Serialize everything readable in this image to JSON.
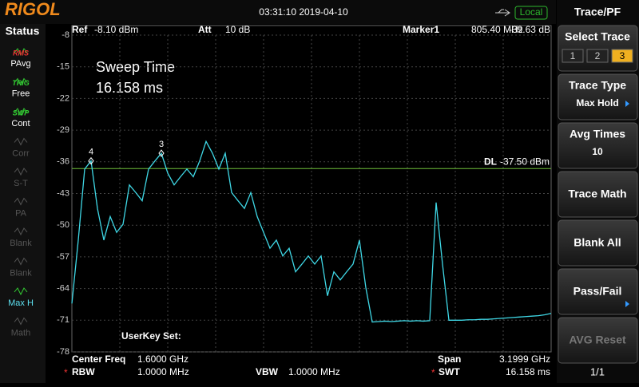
{
  "header": {
    "brand": "RIGOL",
    "datetime": "03:31:10 2019-04-10",
    "mode": "Local"
  },
  "status": {
    "title": "Status",
    "items": [
      {
        "tag": "RMS",
        "label": "PAvg"
      },
      {
        "tag": "TRIG",
        "label": "Free"
      },
      {
        "tag": "SWP",
        "label": "Cont"
      },
      {
        "label": "Corr"
      },
      {
        "label": "S-T"
      },
      {
        "label": "PA"
      },
      {
        "label": "Blank"
      },
      {
        "label": "Blank"
      },
      {
        "label": "Max H"
      },
      {
        "label": "Math"
      }
    ]
  },
  "menu": {
    "title": "Trace/PF",
    "items": [
      {
        "label": "Select Trace",
        "options": [
          "1",
          "2",
          "3"
        ]
      },
      {
        "label": "Trace Type",
        "value": "Max Hold"
      },
      {
        "label": "Avg Times",
        "value": "10"
      },
      {
        "label": "Trace Math"
      },
      {
        "label": "Blank All"
      },
      {
        "label": "Pass/Fail"
      },
      {
        "label": "AVG Reset"
      }
    ],
    "page": "1/1"
  },
  "readouts": {
    "ref": {
      "label": "Ref",
      "value": "-8.10 dBm"
    },
    "att": {
      "label": "Att",
      "value": "10 dB"
    },
    "marker": {
      "label": "Marker1",
      "freq": "805.40 MHz",
      "level": "-39.63 dB"
    },
    "overlay": {
      "label": "Sweep Time",
      "value": "16.158 ms"
    },
    "userkey": "UserKey Set:",
    "center": {
      "label": "Center Freq",
      "value": "1.6000 GHz"
    },
    "span": {
      "label": "Span",
      "value": "3.1999 GHz"
    },
    "rbw": {
      "label": "RBW",
      "value": "1.0000 MHz"
    },
    "vbw": {
      "label": "VBW",
      "value": "1.0000 MHz"
    },
    "swt": {
      "label": "SWT",
      "value": "16.158 ms"
    }
  },
  "chart_data": {
    "type": "line",
    "ylim": [
      -78,
      -8
    ],
    "yticks": [
      -8,
      -15,
      -22,
      -29,
      -36,
      -43,
      -50,
      -57,
      -64,
      -71,
      -78
    ],
    "grid": true,
    "color": "#3fd8e6",
    "values": [
      -67.3,
      -53.3,
      -37.6,
      -35.8,
      -46.3,
      -53.3,
      -48.1,
      -51.6,
      -49.8,
      -41.1,
      -42.8,
      -44.6,
      -37.6,
      -35.8,
      -34.1,
      -38.5,
      -41.1,
      -39.3,
      -37.6,
      -39.3,
      -35.8,
      -31.5,
      -34.1,
      -37.6,
      -34.1,
      -42.8,
      -44.6,
      -46.3,
      -42.8,
      -48.1,
      -51.6,
      -55.1,
      -53.3,
      -56.8,
      -55.1,
      -60.3,
      -58.6,
      -56.8,
      -58.6,
      -56.8,
      -65.6,
      -60.3,
      -62.1,
      -60.3,
      -58.6,
      -53.3,
      -63.8,
      -71.4,
      -71.3,
      -71.2,
      -71.3,
      -71.2,
      -71.1,
      -71.2,
      -71.1,
      -71.2,
      -71.1,
      -45.0,
      -58.6,
      -71.0,
      -71.0,
      -71.0,
      -70.9,
      -70.9,
      -70.8,
      -70.8,
      -70.7,
      -70.6,
      -70.5,
      -70.4,
      -70.3,
      -70.2,
      -70.1,
      -70.0,
      -69.8,
      -69.5
    ],
    "markers": [
      {
        "label": "4",
        "point": 3
      },
      {
        "label": "3",
        "point": 14
      }
    ],
    "display_line": {
      "name": "DL",
      "level": {
        "value": -37.5,
        "label": "-37.50 dBm"
      },
      "color": "#6fbf3a"
    }
  }
}
